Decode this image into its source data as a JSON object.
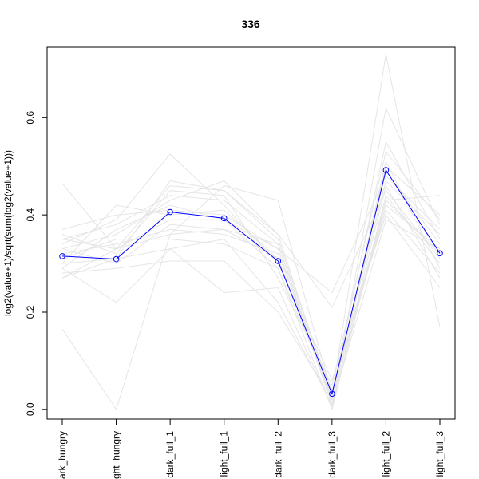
{
  "chart_data": {
    "type": "line",
    "title": "336",
    "xlabel": "",
    "ylabel": "log2(value+1)/sqrt(sum(log2(value+1)))",
    "categories": [
      "dark_hungry",
      "light_hungry",
      "dark_full_1",
      "light_full_1",
      "dark_full_2",
      "dark_full_3",
      "light_full_2",
      "light_full_3"
    ],
    "category_labels_visible": [
      "ark_hungry",
      "ght_hungry",
      "dark_full_1",
      "light_full_1",
      "dark_full_2",
      "dark_full_3",
      "light_full_2",
      "light_full_3"
    ],
    "ylim": [
      -0.02,
      0.745
    ],
    "yticks": [
      0.0,
      0.2,
      0.4,
      0.6
    ],
    "ytick_labels": [
      "0.0",
      "0.2",
      "0.4",
      "0.6"
    ],
    "grid": false,
    "legend": "none",
    "highlight_color": "#0000ff",
    "background_color": "#e5e5e5",
    "highlight": {
      "values": [
        0.315,
        0.309,
        0.406,
        0.393,
        0.305,
        0.032,
        0.492,
        0.321
      ]
    },
    "background_series": [
      [
        0.465,
        0.33,
        0.36,
        0.37,
        0.31,
        0.02,
        0.5,
        0.4
      ],
      [
        0.165,
        0.0,
        0.36,
        0.46,
        0.43,
        0.03,
        0.73,
        0.17
      ],
      [
        0.29,
        0.22,
        0.33,
        0.24,
        0.25,
        0.005,
        0.43,
        0.44
      ],
      [
        0.37,
        0.4,
        0.41,
        0.4,
        0.33,
        0.01,
        0.62,
        0.38
      ],
      [
        0.34,
        0.39,
        0.525,
        0.42,
        0.3,
        0.06,
        0.4,
        0.25
      ],
      [
        0.33,
        0.36,
        0.43,
        0.47,
        0.36,
        0.21,
        0.45,
        0.31
      ],
      [
        0.3,
        0.31,
        0.47,
        0.45,
        0.35,
        0.03,
        0.55,
        0.35
      ],
      [
        0.28,
        0.29,
        0.305,
        0.305,
        0.2,
        0.02,
        0.42,
        0.33
      ],
      [
        0.27,
        0.33,
        0.39,
        0.39,
        0.29,
        0.0,
        0.44,
        0.3
      ],
      [
        0.35,
        0.38,
        0.44,
        0.43,
        0.34,
        0.03,
        0.47,
        0.36
      ],
      [
        0.32,
        0.34,
        0.37,
        0.36,
        0.32,
        0.04,
        0.41,
        0.28
      ],
      [
        0.3,
        0.42,
        0.4,
        0.41,
        0.31,
        0.02,
        0.49,
        0.34
      ],
      [
        0.36,
        0.32,
        0.45,
        0.44,
        0.27,
        0.05,
        0.53,
        0.39
      ],
      [
        0.33,
        0.3,
        0.38,
        0.37,
        0.34,
        0.01,
        0.46,
        0.27
      ],
      [
        0.31,
        0.35,
        0.35,
        0.34,
        0.29,
        0.03,
        0.43,
        0.32
      ],
      [
        0.29,
        0.37,
        0.42,
        0.39,
        0.33,
        0.24,
        0.48,
        0.37
      ],
      [
        0.35,
        0.33,
        0.46,
        0.45,
        0.36,
        0.02,
        0.51,
        0.29
      ],
      [
        0.27,
        0.31,
        0.33,
        0.35,
        0.22,
        0.01,
        0.39,
        0.33
      ]
    ]
  }
}
